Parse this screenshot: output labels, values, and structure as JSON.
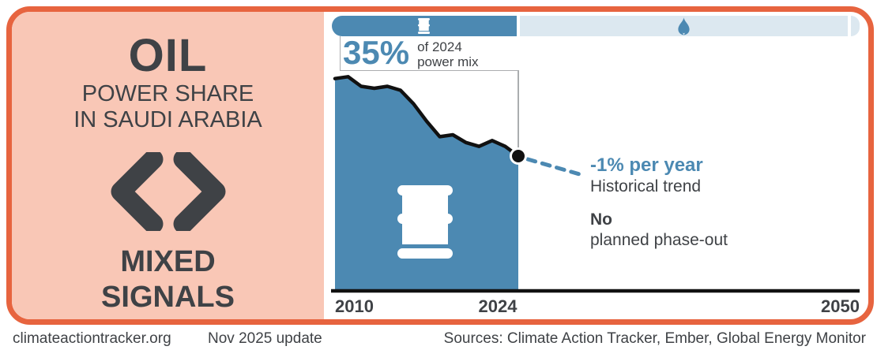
{
  "left_panel": {
    "title": "OIL",
    "subtitle_line1": "POWER SHARE",
    "subtitle_line2": "IN SAUDI ARABIA",
    "verdict_line1": "MIXED",
    "verdict_line2": "SIGNALS"
  },
  "power_mix_bar": {
    "oil_share_pct": 35,
    "oil_icon": "oil-barrel-icon",
    "other_icon": "gas-flame-icon"
  },
  "callout": {
    "value": "35%",
    "caption_line1": "of 2024",
    "caption_line2": "power mix"
  },
  "trend_annotation": {
    "value": "-1% per year",
    "label": "Historical trend"
  },
  "phaseout_annotation": {
    "bold": "No",
    "rest": "planned phase-out"
  },
  "axis": {
    "tick_start": "2010",
    "tick_mid": "2024",
    "tick_end": "2050"
  },
  "footer": {
    "site": "climateactiontracker.org",
    "update": "Nov 2025 update",
    "sources": "Sources: Climate Action Tracker, Ember, Global Energy Monitor"
  },
  "colors": {
    "blue": "#4C89B2",
    "light_blue": "#DCE8F0",
    "orange": "#E7643F",
    "salmon": "#F9C7B6",
    "dark": "#3F4246",
    "gray_line": "#ABADAF",
    "line_black": "#111111"
  },
  "chart_data": {
    "type": "area",
    "title": "Oil power share in Saudi Arabia",
    "x": [
      2010,
      2011,
      2012,
      2013,
      2014,
      2015,
      2016,
      2017,
      2018,
      2019,
      2020,
      2021,
      2022,
      2023,
      2024
    ],
    "series": [
      {
        "name": "Oil share of power mix (%)",
        "values": [
          55,
          55.5,
          53,
          52.5,
          53,
          52,
          48.5,
          44,
          40,
          40.5,
          38.5,
          37.5,
          39,
          37.5,
          35
        ]
      }
    ],
    "projection": {
      "name": "Historical trend -1% per year",
      "x": [
        2024,
        2029
      ],
      "values": [
        35,
        30
      ],
      "style": "dashed"
    },
    "x_ticks": [
      "2010",
      "2024",
      "2050"
    ],
    "xlim": [
      2010,
      2050
    ],
    "ylim": [
      0,
      58
    ],
    "grid": false,
    "legend": "none",
    "annotations": [
      "35% of 2024 power mix",
      "-1% per year Historical trend",
      "No planned phase-out"
    ]
  }
}
